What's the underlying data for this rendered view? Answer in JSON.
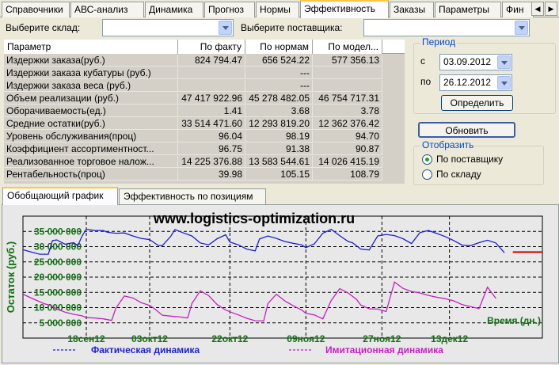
{
  "tabs": [
    "Справочники",
    "АВС-анализ",
    "Динамика",
    "Прогноз",
    "Нормы",
    "Эффективность",
    "Заказы",
    "Параметры",
    "Фин"
  ],
  "active_tab": "Эффективность",
  "filters": {
    "warehouse_label": "Выберите склад:",
    "warehouse_value": "",
    "supplier_label": "Выберите поставщика:",
    "supplier_value": ""
  },
  "grid": {
    "columns": [
      "Параметр",
      "По факту",
      "По нормам",
      "По модел..."
    ],
    "rows": [
      [
        "Издержки заказа(руб.)",
        "824 794.47",
        "656 524.22",
        "577 356.13"
      ],
      [
        "Издержки заказа кубатуры (руб.)",
        "",
        "---",
        ""
      ],
      [
        "Издержки заказа веса (руб.)",
        "",
        "---",
        ""
      ],
      [
        "Объем реализации (руб.)",
        "47 417 922.96",
        "45 278 482.05",
        "46 754 717.31"
      ],
      [
        "Оборачиваемость(ед.)",
        "1.41",
        "3.68",
        "3.78"
      ],
      [
        "Средние остатки(руб.)",
        "33 514 471.60",
        "12 293 819.20",
        "12 362 376.42"
      ],
      [
        "Уровень обслуживания(проц)",
        "96.04",
        "98.19",
        "94.70"
      ],
      [
        "Коэффициент ассортиментност...",
        "96.75",
        "91.38",
        "90.87"
      ],
      [
        "Реализованное торговое налож...",
        "14 225 376.88",
        "13 583 544.61",
        "14 026 415.19"
      ],
      [
        "Рентабельность(проц)",
        "39.98",
        "105.15",
        "108.79"
      ]
    ]
  },
  "period": {
    "legend": "Период",
    "from_label": "с",
    "from_value": "03.09.2012",
    "to_label": "по",
    "to_value": "26.12.2012",
    "define_button": "Определить"
  },
  "refresh_button": "Обновить",
  "display": {
    "legend": "Отобразить",
    "options": [
      "По поставщику",
      "По складу"
    ],
    "selected": "По поставщику"
  },
  "lower_tabs": [
    "Обобщающий график",
    "Эффективность по позициям"
  ],
  "active_lower_tab": "Обобщающий график",
  "chart_data": {
    "type": "line",
    "watermark": "www.logistics-optimization.ru",
    "ylabel": "Остаток (руб.)",
    "xlabel": "Время (дн.)",
    "ylim": [
      0,
      40000000
    ],
    "y_ticks": [
      "35 000 000",
      "30 000 000",
      "25 000 000",
      "20 000 000",
      "15 000 000",
      "10 000 000",
      "5 000 000"
    ],
    "y_tick_values": [
      35000000,
      30000000,
      25000000,
      20000000,
      15000000,
      10000000,
      5000000
    ],
    "x_ticks": [
      "18сен12",
      "03окт12",
      "22окт12",
      "09ноя12",
      "27ноя12",
      "13дек12"
    ],
    "x_tick_days": [
      15,
      30,
      49,
      67,
      85,
      101
    ],
    "colors": {
      "actual": "#1f1fd6",
      "simulated": "#c81fc0",
      "norm": "#cc0000"
    },
    "series": [
      {
        "name": "Фактическая динамика",
        "x": [
          0,
          2,
          4,
          6,
          7,
          8,
          10,
          12,
          13,
          14,
          15,
          17,
          19,
          20,
          22,
          24,
          26,
          28,
          30,
          32,
          33,
          35,
          36,
          38,
          40,
          42,
          44,
          46,
          48,
          49,
          51,
          53,
          55,
          56,
          58,
          60,
          62,
          64,
          66,
          67,
          69,
          71,
          73,
          75,
          77,
          78,
          80,
          82,
          84,
          86,
          88,
          90,
          92,
          94,
          96,
          98,
          100,
          102,
          104,
          106,
          108,
          110,
          112,
          114
        ],
        "values": [
          29000000,
          28200000,
          27500000,
          27500000,
          32000000,
          32200000,
          30800000,
          31300000,
          30300000,
          33500000,
          35700000,
          35300000,
          35300000,
          34700000,
          34400000,
          34500000,
          33500000,
          32700000,
          32300000,
          30400000,
          30300000,
          33400000,
          35600000,
          34500000,
          33500000,
          31200000,
          30600000,
          32600000,
          33900000,
          31500000,
          30600000,
          29200000,
          28600000,
          32500000,
          33500000,
          32700000,
          31700000,
          31100000,
          30600000,
          29700000,
          30900000,
          34400000,
          35700000,
          33600000,
          31700000,
          31300000,
          29200000,
          28900000,
          33500000,
          34000000,
          33600000,
          32600000,
          31000000,
          34600000,
          35300000,
          34300000,
          33300000,
          32000000,
          30500000,
          30300000,
          31300000,
          32100000,
          31200000,
          28000000
        ]
      },
      {
        "name": "Имитационная динамика",
        "x": [
          0,
          3,
          5,
          7,
          8,
          10,
          12,
          14,
          15,
          17,
          19,
          21,
          22,
          24,
          26,
          28,
          30,
          31,
          33,
          35,
          37,
          39,
          40,
          42,
          44,
          46,
          48,
          50,
          51,
          53,
          55,
          57,
          58,
          60,
          62,
          64,
          66,
          67,
          69,
          71,
          73,
          75,
          77,
          79,
          80,
          82,
          84,
          86,
          88,
          90,
          92,
          94,
          96,
          98,
          100,
          102,
          104,
          106,
          108,
          110,
          112
        ],
        "values": [
          14400000,
          12500000,
          11300000,
          10500000,
          9500000,
          8500000,
          7800000,
          7300000,
          6700000,
          6600000,
          6300000,
          5800000,
          9800000,
          13800000,
          13200000,
          11600000,
          10700000,
          9800000,
          7500000,
          7200000,
          7000000,
          6600000,
          11300000,
          15500000,
          13900000,
          11000000,
          9200000,
          8100000,
          7600000,
          6500000,
          5700000,
          5600000,
          11300000,
          14400000,
          12200000,
          10600000,
          9200000,
          8100000,
          7600000,
          6300000,
          12300000,
          16200000,
          14800000,
          12700000,
          10800000,
          9600000,
          9500000,
          8700000,
          18400000,
          16300000,
          15300000,
          14800000,
          14000000,
          13400000,
          12900000,
          12200000,
          11000000,
          10300000,
          9700000,
          16700000,
          13000000
        ]
      },
      {
        "name": "",
        "x": [
          116,
          123
        ],
        "values": [
          28200000,
          28200000
        ]
      }
    ]
  }
}
